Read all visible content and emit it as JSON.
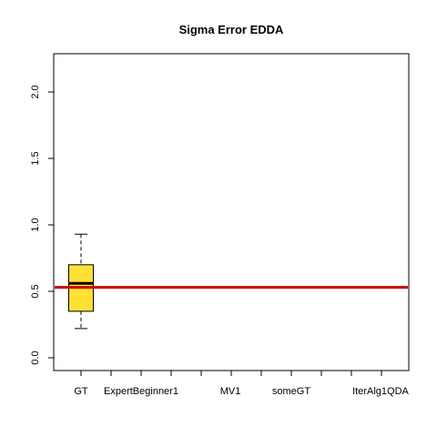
{
  "chart_data": {
    "type": "boxplot",
    "title": "Sigma Error EDDA",
    "xlabel": "",
    "ylabel": "",
    "ylim": [
      -0.05,
      2.28
    ],
    "yticks": [
      0.0,
      0.5,
      1.0,
      1.5,
      2.0
    ],
    "ytick_labels": [
      "0.0",
      "0.5",
      "1.0",
      "1.5",
      "2.0"
    ],
    "categories": [
      "GT",
      "Expert",
      "Beginner1",
      "",
      "MV1",
      "",
      "someGT",
      "",
      "",
      "IterAlg1",
      "QDA"
    ],
    "tick_labels_shown": [
      "GT",
      "ExpertBeginner1",
      "MV1",
      "someGT",
      "IterAlg1QDA"
    ],
    "boxes": [
      {
        "category": "GT",
        "whisker_low": 0.22,
        "q1": 0.35,
        "median": 0.56,
        "q3": 0.7,
        "whisker_high": 0.93
      }
    ],
    "reference_line": {
      "y": 0.53,
      "color": "#cc0000"
    },
    "box_fill": "#ffe135",
    "grid": false,
    "legend": "none"
  }
}
